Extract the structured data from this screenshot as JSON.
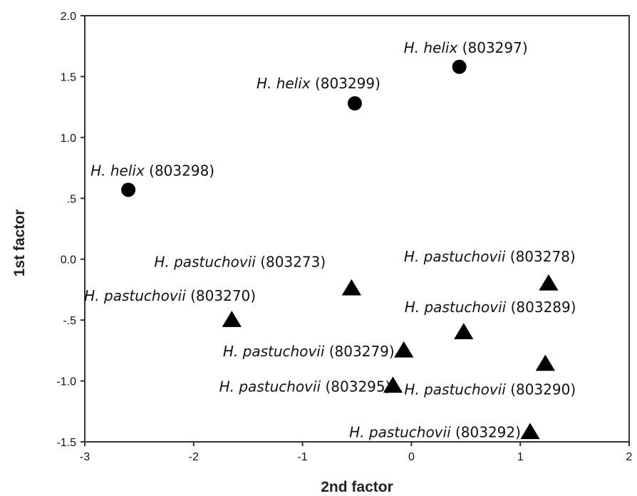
{
  "chart_data": {
    "type": "scatter",
    "title": "",
    "xlabel": "2nd factor",
    "ylabel": "1st factor",
    "xlim": [
      -3,
      2
    ],
    "ylim": [
      -1.5,
      2.0
    ],
    "x_ticks": [
      "-3",
      "-2",
      "-1",
      "0",
      "1",
      "2"
    ],
    "y_ticks": [
      "-1.5",
      "-1.0",
      "-.5",
      "0.0",
      ".5",
      "1.0",
      "1.5",
      "2.0"
    ],
    "grid": false,
    "series": [
      {
        "marker": "circle",
        "points": [
          {
            "species": "H. helix",
            "code": "(803297)",
            "x": 0.44,
            "y": 1.58
          },
          {
            "species": "H. helix",
            "code": "(803299)",
            "x": -0.52,
            "y": 1.28
          },
          {
            "species": "H. helix",
            "code": "(803298)",
            "x": -2.6,
            "y": 0.57
          }
        ]
      },
      {
        "marker": "triangle",
        "points": [
          {
            "species": "H. pastuchovii",
            "code": "(803273)",
            "x": -0.55,
            "y": -0.24
          },
          {
            "species": "H. pastuchovii",
            "code": "(803270)",
            "x": -1.65,
            "y": -0.5
          },
          {
            "species": "H. pastuchovii",
            "code": "(803278)",
            "x": 1.26,
            "y": -0.2
          },
          {
            "species": "H. pastuchovii",
            "code": "(803289)",
            "x": 0.48,
            "y": -0.6
          },
          {
            "species": "H. pastuchovii",
            "code": "(803279)",
            "x": -0.07,
            "y": -0.75
          },
          {
            "species": "H. pastuchovii",
            "code": "(803290)",
            "x": 1.23,
            "y": -0.86
          },
          {
            "species": "H. pastuchovii",
            "code": "(803295)",
            "x": -0.17,
            "y": -1.04
          },
          {
            "species": "H. pastuchovii",
            "code": "(803292)",
            "x": 1.09,
            "y": -1.42
          }
        ]
      }
    ]
  }
}
